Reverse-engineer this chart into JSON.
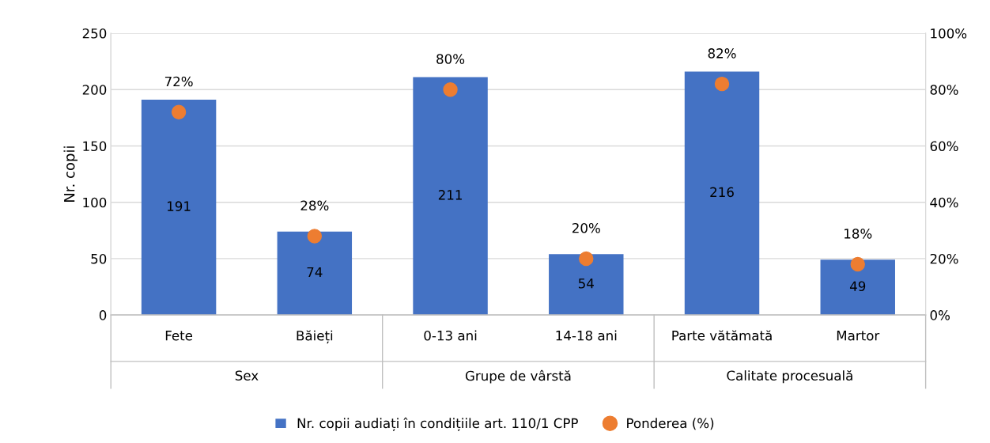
{
  "chart_data": {
    "type": "bar",
    "categories": [
      "Fete",
      "Băieți",
      "0-13 ani",
      "14-18 ani",
      "Parte vătămată",
      "Martor"
    ],
    "series": [
      {
        "name": "Nr. copii audiați în condițiile art. 110/1 CPP",
        "color": "#4472c4",
        "values": [
          191,
          74,
          211,
          54,
          216,
          49
        ],
        "value_labels": [
          "191",
          "74",
          "211",
          "54",
          "216",
          "49"
        ]
      },
      {
        "name": "Ponderea (%)",
        "type": "scatter",
        "axis": "y2",
        "color": "#ed7d31",
        "marker": "circle",
        "values": [
          72,
          28,
          80,
          20,
          82,
          18
        ],
        "value_labels": [
          "72%",
          "28%",
          "80%",
          "20%",
          "82%",
          "18%"
        ]
      }
    ],
    "annotations": [
      "Sex",
      "Grupe de vârstă",
      "Calitate procesuală"
    ],
    "ylabel": "Nr. copii",
    "ylim": [
      0,
      250
    ],
    "yticks": [
      0,
      50,
      100,
      150,
      200,
      250
    ],
    "y2lim": [
      0,
      100
    ],
    "y2ticks": [
      {
        "value": 0,
        "label": "0%"
      },
      {
        "value": 20,
        "label": "20%"
      },
      {
        "value": 40,
        "label": "40%"
      },
      {
        "value": 60,
        "label": "60%"
      },
      {
        "value": 80,
        "label": "80%"
      },
      {
        "value": 100,
        "label": "100%"
      }
    ],
    "grid": "y",
    "legend": "bottom"
  }
}
